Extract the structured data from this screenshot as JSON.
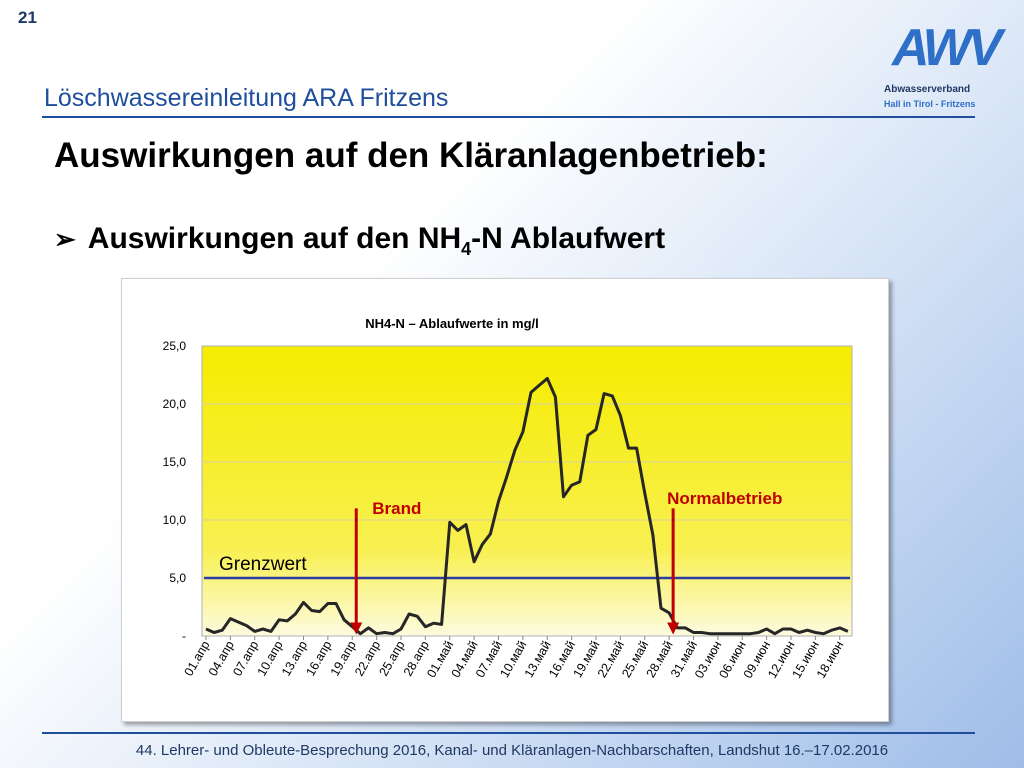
{
  "slide_number": "21",
  "subtitle": "Löschwassereinleitung ARA Fritzens",
  "logo": {
    "letters": "AWV",
    "line1": "Abwasserverband",
    "line2": "Hall in Tirol - Fritzens"
  },
  "heading": "Auswirkungen auf den Kläranlagenbetrieb:",
  "bullet": {
    "arrow": "➢",
    "text_before": "Auswirkungen auf den NH",
    "subscript": "4",
    "text_after": "-N Ablaufwert"
  },
  "footer": "44. Lehrer- und Obleute-Besprechung 2016, Kanal- und Kläranlagen-Nachbarschaften, Landshut 16.–17.02.2016",
  "colors": {
    "plot_bg_top": "#f5ec00",
    "plot_bg_bottom": "#fdfbe0",
    "series": "#262626",
    "limit_line": "#2f3e9e",
    "marker": "#c00000",
    "accent": "#1f4e9c"
  },
  "chart_data": {
    "type": "line",
    "title": "NH4-N  – Ablaufwerte in mg/l",
    "ylim": [
      0,
      25
    ],
    "yticks": [
      "-",
      "5,0",
      "10,0",
      "15,0",
      "20,0",
      "25,0"
    ],
    "x_ticklabels": [
      "01.апр",
      "04.апр",
      "07.апр",
      "10.апр",
      "13.апр",
      "16.апр",
      "19.апр",
      "22.апр",
      "25.апр",
      "28.апр",
      "01.май",
      "04.май",
      "07.май",
      "10.май",
      "13.май",
      "16.май",
      "19.май",
      "22.май",
      "25.май",
      "28.май",
      "31.май",
      "03.июн",
      "06.июн",
      "09.июн",
      "12.июн",
      "15.июн",
      "18.июн"
    ],
    "x_start_date": "01.апр",
    "step_days": 1,
    "series": [
      {
        "values": [
          0.6,
          0.3,
          0.5,
          1.5,
          1.2,
          0.9,
          0.4,
          0.6,
          0.4,
          1.4,
          1.3,
          1.9,
          2.9,
          2.2,
          2.1,
          2.8,
          2.8,
          1.4,
          0.8,
          0.2,
          0.7,
          0.2,
          0.3,
          0.2,
          0.6,
          1.9,
          1.7,
          0.8,
          1.1,
          1.0,
          9.8,
          9.1,
          9.6,
          6.4,
          7.9,
          8.8,
          11.6,
          13.7,
          16.0,
          17.6,
          21.0,
          21.6,
          22.2,
          20.6,
          12.0,
          13.0,
          13.3,
          17.3,
          17.8,
          20.9,
          20.7,
          19.0,
          16.2,
          16.2,
          12.3,
          8.7,
          2.4,
          2.0,
          0.7,
          0.7,
          0.3,
          0.3,
          0.2,
          0.2,
          0.2,
          0.2,
          0.2,
          0.2,
          0.3,
          0.6,
          0.2,
          0.6,
          0.6,
          0.3,
          0.5,
          0.3,
          0.2,
          0.5,
          0.7,
          0.4
        ]
      }
    ],
    "reference_line": {
      "label": "Grenzwert",
      "value": 5.0
    },
    "annotations": [
      {
        "label": "Brand",
        "x": "19.апр"
      },
      {
        "label": "Normalbetrieb",
        "x": "28.май"
      }
    ]
  }
}
